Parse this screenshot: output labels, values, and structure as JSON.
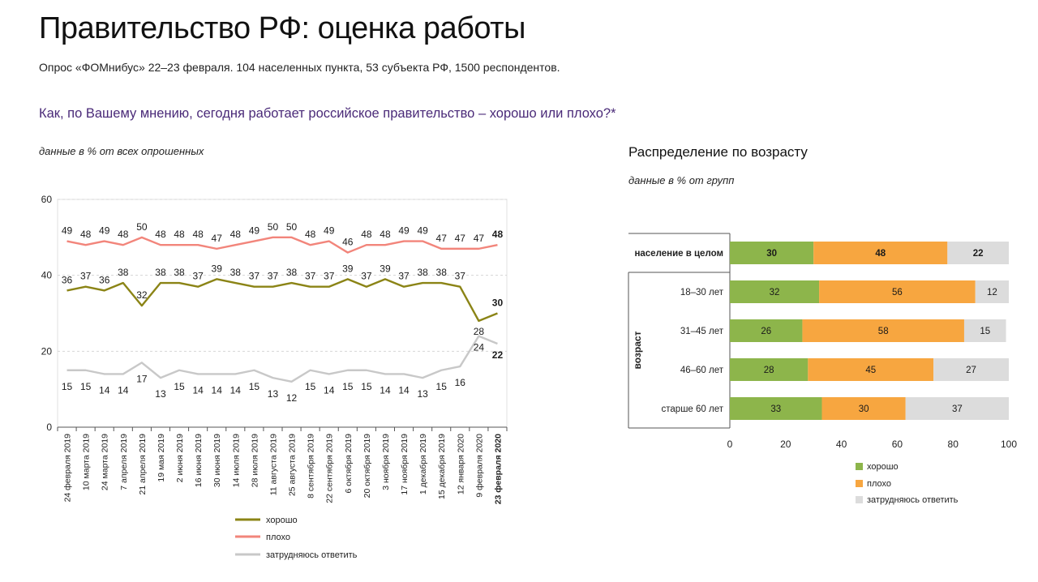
{
  "title": "Правительство РФ: оценка работы",
  "subtitle": "Опрос «ФОМнибус» 22–23 февраля. 104 населенных пункта, 53 субъекта РФ, 1500 респондентов.",
  "question": "Как, по Вашему мнению, сегодня работает российское правительство – хорошо или плохо?*",
  "left_note": "данные в % от всех опрошенных",
  "right_title": "Распределение по возрасту",
  "right_note": "данные в % от групп",
  "colors": {
    "good": "#8b8416",
    "bad": "#f2857b",
    "hard": "#c8c8c8",
    "bar_good": "#8db54b",
    "bar_bad": "#f7a640",
    "bar_hard": "#dcdcdc"
  },
  "chart_data": [
    {
      "type": "line",
      "ylim": [
        0,
        60
      ],
      "yticks": [
        0,
        20,
        40,
        60
      ],
      "x": [
        "24 февраля 2019",
        "10 марта 2019",
        "24 марта 2019",
        "7 апреля 2019",
        "21 апреля 2019",
        "19 мая 2019",
        "2 июня 2019",
        "16 июня 2019",
        "30 июня 2019",
        "14 июля 2019",
        "28 июля 2019",
        "11 августа 2019",
        "25 августа 2019",
        "8 сентября 2019",
        "22 сентября 2019",
        "6 октября 2019",
        "20 октября 2019",
        "3 ноября 2019",
        "17 ноября 2019",
        "1 декабря 2019",
        "15 декабря 2019",
        "12 января 2020",
        "9 февраля 2020",
        "23 февраля 2020"
      ],
      "series": [
        {
          "key": "good",
          "name": "хорошо",
          "values": [
            36,
            37,
            36,
            38,
            32,
            38,
            38,
            37,
            39,
            38,
            37,
            37,
            38,
            37,
            37,
            39,
            37,
            39,
            37,
            38,
            38,
            37,
            28,
            30
          ]
        },
        {
          "key": "bad",
          "name": "плохо",
          "values": [
            49,
            48,
            49,
            48,
            50,
            48,
            48,
            48,
            47,
            48,
            49,
            50,
            50,
            48,
            49,
            46,
            48,
            48,
            49,
            49,
            47,
            47,
            47,
            48
          ]
        },
        {
          "key": "hard",
          "name": "затрудняюсь ответить",
          "values": [
            15,
            15,
            14,
            14,
            17,
            13,
            15,
            14,
            14,
            14,
            15,
            13,
            12,
            15,
            14,
            15,
            15,
            14,
            14,
            13,
            15,
            16,
            24,
            22
          ]
        }
      ]
    },
    {
      "type": "bar",
      "orientation": "horizontal",
      "stacked": true,
      "xlim": [
        0,
        100
      ],
      "xticks": [
        0,
        20,
        40,
        60,
        80,
        100
      ],
      "ylabel": "возраст",
      "categories": [
        "население в целом",
        "18–30 лет",
        "31–45 лет",
        "46–60 лет",
        "старше 60 лет"
      ],
      "series": [
        {
          "key": "good",
          "name": "хорошо",
          "values": [
            30,
            32,
            26,
            28,
            33
          ]
        },
        {
          "key": "bad",
          "name": "плохо",
          "values": [
            48,
            56,
            58,
            45,
            30
          ]
        },
        {
          "key": "hard",
          "name": "затрудняюсь ответить",
          "values": [
            22,
            12,
            15,
            27,
            37
          ]
        }
      ]
    }
  ]
}
